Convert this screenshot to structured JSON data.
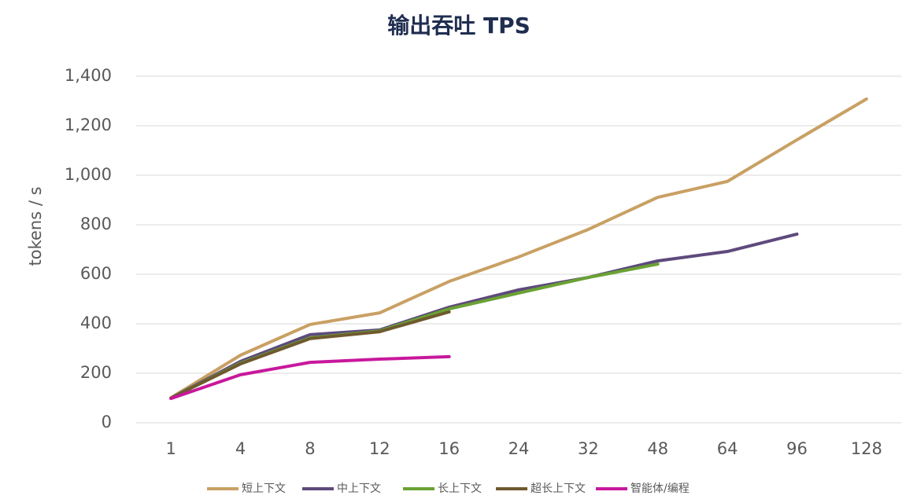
{
  "chart_data": {
    "type": "line",
    "title": "输出吞吐 TPS",
    "y_label": "tokens / s",
    "categories": [
      "1",
      "4",
      "8",
      "12",
      "16",
      "24",
      "32",
      "48",
      "64",
      "96",
      "128"
    ],
    "series": [
      {
        "name": "短上下文",
        "color": "#c9a064",
        "values": [
          101,
          273,
          397,
          444,
          571,
          670,
          781,
          911,
          975,
          1143,
          1308
        ]
      },
      {
        "name": "中上下文",
        "color": "#5e4a7c",
        "values": [
          100,
          248,
          356,
          375,
          467,
          537,
          587,
          654,
          692,
          762,
          null
        ]
      },
      {
        "name": "长上下文",
        "color": "#6aa233",
        "values": [
          100,
          241,
          343,
          371,
          460,
          524,
          587,
          641,
          null,
          null,
          null
        ]
      },
      {
        "name": "超长上下文",
        "color": "#6e5a2e",
        "values": [
          100,
          238,
          340,
          368,
          448,
          null,
          null,
          null,
          null,
          null,
          null
        ]
      },
      {
        "name": "智能体/编程",
        "color": "#c8189c",
        "values": [
          98,
          194,
          244,
          257,
          267,
          null,
          null,
          null,
          null,
          null,
          null
        ]
      }
    ],
    "ylim": [
      0,
      1400
    ],
    "yticks": [
      0,
      200,
      400,
      600,
      800,
      {
        "value": 1000,
        "label": "1,000"
      },
      {
        "value": 1200,
        "label": "1,200"
      },
      {
        "value": 1400,
        "label": "1,400"
      }
    ],
    "grid": true,
    "legend": "bottom"
  }
}
